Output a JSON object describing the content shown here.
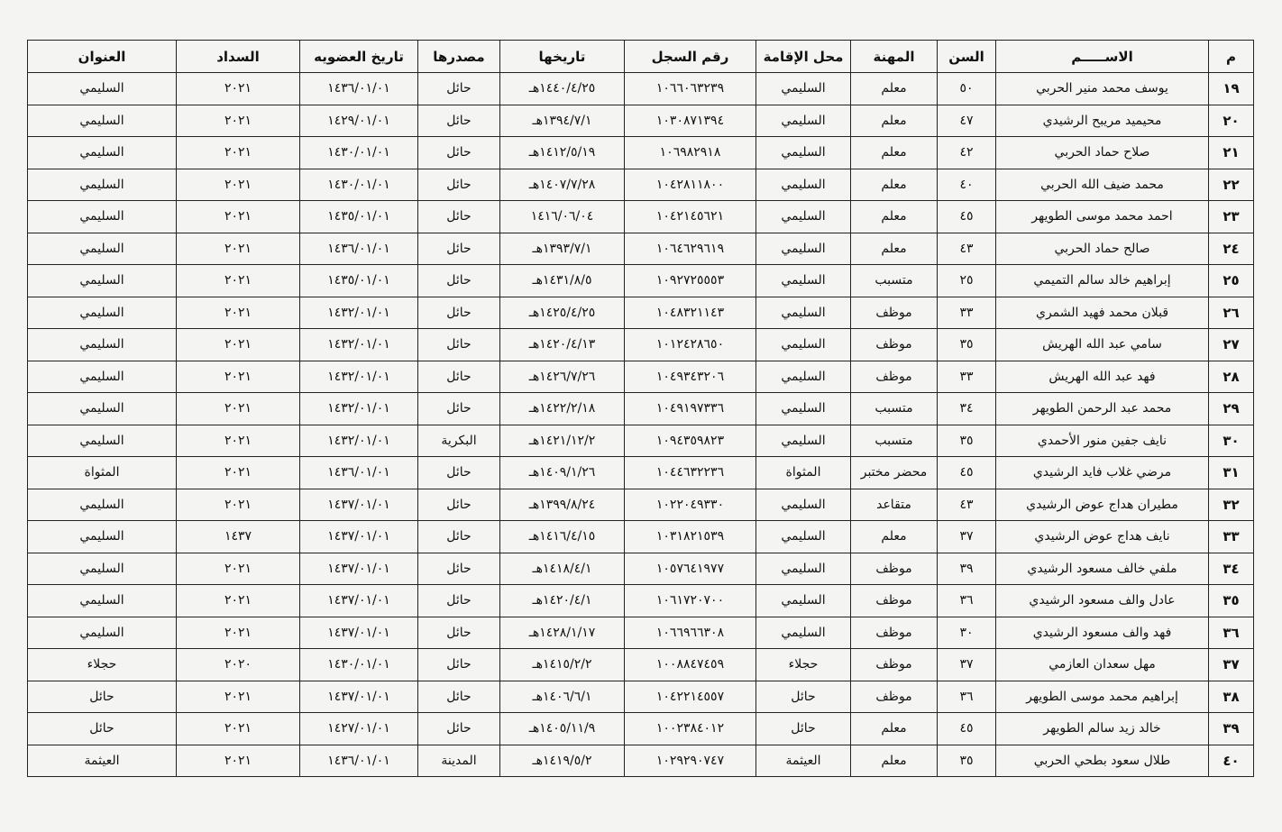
{
  "table": {
    "header": [
      "م",
      "الاســـــم",
      "السن",
      "المهنة",
      "محل الإقامة",
      "رقم السجل",
      "تاريخها",
      "مصدرها",
      "تاريخ العضويه",
      "السداد",
      "العنوان"
    ],
    "rows": [
      [
        "١٩",
        "يوسف محمد منير الحربي",
        "٥٠",
        "معلم",
        "السليمي",
        "١٠٦٦٠٦٣٢٣٩",
        "١٤٤٠/٤/٢٥هـ",
        "حائل",
        "١٤٣٦/٠١/٠١",
        "٢٠٢١",
        "السليمي"
      ],
      [
        "٢٠",
        "محيميد مريبح الرشيدي",
        "٤٧",
        "معلم",
        "السليمي",
        "١٠٣٠٨٧١٣٩٤",
        "١٣٩٤/٧/١هـ",
        "حائل",
        "١٤٢٩/٠١/٠١",
        "٢٠٢١",
        "السليمي"
      ],
      [
        "٢١",
        "صلاح حماد الحربي",
        "٤٢",
        "معلم",
        "السليمي",
        "١٠٦٩٨٢٩١٨",
        "١٤١٢/٥/١٩هـ",
        "حائل",
        "١٤٣٠/٠١/٠١",
        "٢٠٢١",
        "السليمي"
      ],
      [
        "٢٢",
        "محمد ضيف الله الحربي",
        "٤٠",
        "معلم",
        "السليمي",
        "١٠٤٢٨١١٨٠٠",
        "١٤٠٧/٧/٢٨هـ",
        "حائل",
        "١٤٣٠/٠١/٠١",
        "٢٠٢١",
        "السليمي"
      ],
      [
        "٢٣",
        "احمد محمد موسى الطويهر",
        "٤٥",
        "معلم",
        "السليمي",
        "١٠٤٢١٤٥٦٢١",
        "١٤١٦/٠٦/٠٤",
        "حائل",
        "١٤٣٥/٠١/٠١",
        "٢٠٢١",
        "السليمي"
      ],
      [
        "٢٤",
        "صالح حماد الحربي",
        "٤٣",
        "معلم",
        "السليمي",
        "١٠٦٤٦٢٩٦١٩",
        "١٣٩٣/٧/١هـ",
        "حائل",
        "١٤٣٦/٠١/٠١",
        "٢٠٢١",
        "السليمي"
      ],
      [
        "٢٥",
        "إبراهيم خالد سالم التميمي",
        "٢٥",
        "متسبب",
        "السليمي",
        "١٠٩٢٧٢٥٥٥٣",
        "١٤٣١/٨/٥هـ",
        "حائل",
        "١٤٣٥/٠١/٠١",
        "٢٠٢١",
        "السليمي"
      ],
      [
        "٢٦",
        "قبلان محمد فهيد الشمري",
        "٣٣",
        "موظف",
        "السليمي",
        "١٠٤٨٣٢١١٤٣",
        "١٤٢٥/٤/٢٥هـ",
        "حائل",
        "١٤٣٢/٠١/٠١",
        "٢٠٢١",
        "السليمي"
      ],
      [
        "٢٧",
        "سامي عبد الله الهريش",
        "٣٥",
        "موظف",
        "السليمي",
        "١٠١٢٤٢٨٦٥٠",
        "١٤٢٠/٤/١٣هـ",
        "حائل",
        "١٤٣٢/٠١/٠١",
        "٢٠٢١",
        "السليمي"
      ],
      [
        "٢٨",
        "فهد عبد الله الهريش",
        "٣٣",
        "موظف",
        "السليمي",
        "١٠٤٩٣٤٣٢٠٦",
        "١٤٢٦/٧/٢٦هـ",
        "حائل",
        "١٤٣٢/٠١/٠١",
        "٢٠٢١",
        "السليمي"
      ],
      [
        "٢٩",
        "محمد عبد الرحمن الطويهر",
        "٣٤",
        "متسبب",
        "السليمي",
        "١٠٤٩١٩٧٣٣٦",
        "١٤٢٢/٢/١٨هـ",
        "حائل",
        "١٤٣٢/٠١/٠١",
        "٢٠٢١",
        "السليمي"
      ],
      [
        "٣٠",
        "نايف جفين منور الأحمدي",
        "٣٥",
        "متسبب",
        "السليمي",
        "١٠٩٤٣٥٩٨٢٣",
        "١٤٢١/١٢/٢هـ",
        "البكرية",
        "١٤٣٢/٠١/٠١",
        "٢٠٢١",
        "السليمي"
      ],
      [
        "٣١",
        "مرضي غلاب فايد الرشيدي",
        "٤٥",
        "محضر مختبر",
        "المثواة",
        "١٠٤٤٦٣٢٢٣٦",
        "١٤٠٩/١/٢٦هـ",
        "حائل",
        "١٤٣٦/٠١/٠١",
        "٢٠٢١",
        "المثواة"
      ],
      [
        "٣٢",
        "مطيران هداج عوض الرشيدي",
        "٤٣",
        "متقاعد",
        "السليمي",
        "١٠٢٢٠٤٩٣٣٠",
        "١٣٩٩/٨/٢٤هـ",
        "حائل",
        "١٤٣٧/٠١/٠١",
        "٢٠٢١",
        "السليمي"
      ],
      [
        "٣٣",
        "نايف هداج عوض الرشيدي",
        "٣٧",
        "معلم",
        "السليمي",
        "١٠٣١٨٢١٥٣٩",
        "١٤١٦/٤/١٥هـ",
        "حائل",
        "١٤٣٧/٠١/٠١",
        "١٤٣٧",
        "السليمي"
      ],
      [
        "٣٤",
        "ملفي خالف مسعود الرشيدي",
        "٣٩",
        "موظف",
        "السليمي",
        "١٠٥٧٦٤١٩٧٧",
        "١٤١٨/٤/١هـ",
        "حائل",
        "١٤٣٧/٠١/٠١",
        "٢٠٢١",
        "السليمي"
      ],
      [
        "٣٥",
        "عادل والف مسعود الرشيدي",
        "٣٦",
        "موظف",
        "السليمي",
        "١٠٦١٧٢٠٧٠٠",
        "١٤٢٠/٤/١هـ",
        "حائل",
        "١٤٣٧/٠١/٠١",
        "٢٠٢١",
        "السليمي"
      ],
      [
        "٣٦",
        "فهد والف مسعود الرشيدي",
        "٣٠",
        "موظف",
        "السليمي",
        "١٠٦٦٩٦٦٣٠٨",
        "١٤٢٨/١/١٧هـ",
        "حائل",
        "١٤٣٧/٠١/٠١",
        "٢٠٢١",
        "السليمي"
      ],
      [
        "٣٧",
        "مهل سعدان العازمي",
        "٣٧",
        "موظف",
        "حجلاء",
        "١٠٠٨٨٤٧٤٥٩",
        "١٤١٥/٢/٢هـ",
        "حائل",
        "١٤٣٠/٠١/٠١",
        "٢٠٢٠",
        "حجلاء"
      ],
      [
        "٣٨",
        "إبراهيم محمد موسى الطويهر",
        "٣٦",
        "موظف",
        "حائل",
        "١٠٤٢٢١٤٥٥٧",
        "١٤٠٦/٦/١هـ",
        "حائل",
        "١٤٣٧/٠١/٠١",
        "٢٠٢١",
        "حائل"
      ],
      [
        "٣٩",
        "خالد زيد سالم الطويهر",
        "٤٥",
        "معلم",
        "حائل",
        "١٠٠٢٣٨٤٠١٢",
        "١٤٠٥/١١/٩هـ",
        "حائل",
        "١٤٢٧/٠١/٠١",
        "٢٠٢١",
        "حائل"
      ],
      [
        "٤٠",
        "طلال سعود بطحي الحربي",
        "٣٥",
        "معلم",
        "العيثمة",
        "١٠٢٩٢٩٠٧٤٧",
        "١٤١٩/٥/٢هـ",
        "المدينة",
        "١٤٣٦/٠١/٠١",
        "٢٠٢١",
        "العيثمة"
      ]
    ]
  }
}
